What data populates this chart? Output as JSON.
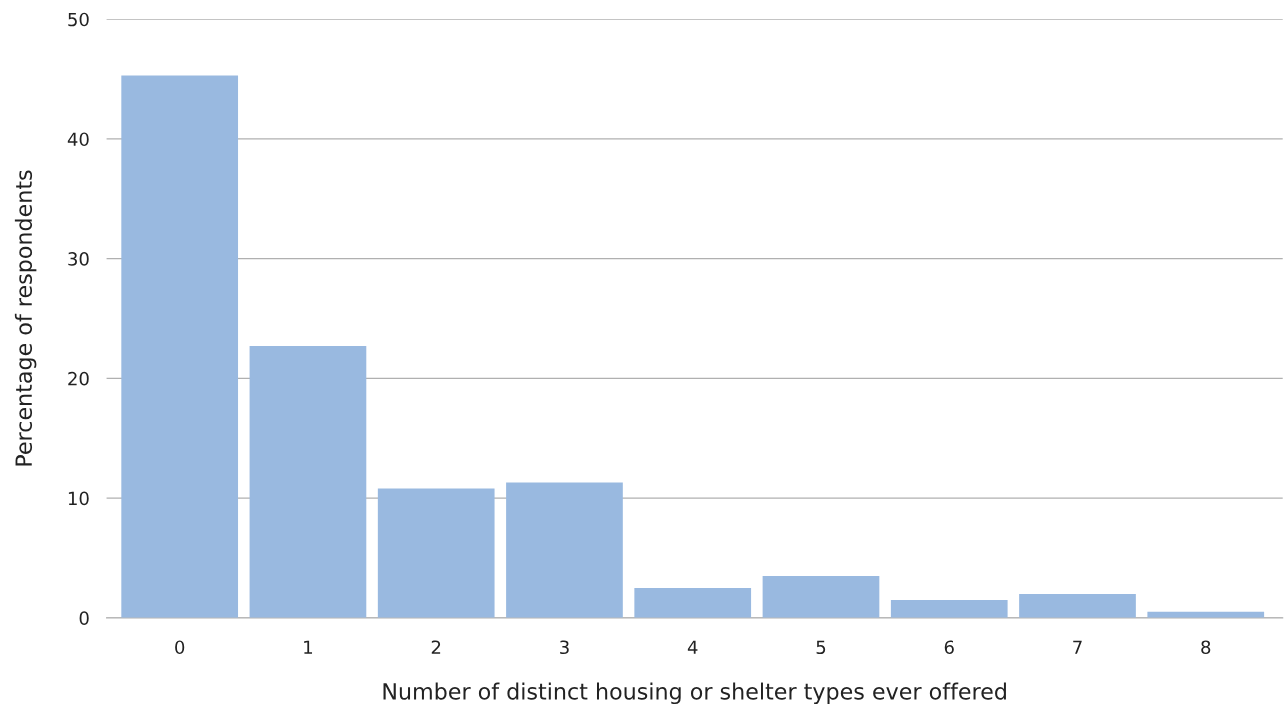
{
  "chart_data": {
    "type": "bar",
    "xlabel": "Number of distinct housing or shelter types ever offered",
    "ylabel": "Percentage of respondents",
    "categories": [
      "0",
      "1",
      "2",
      "3",
      "4",
      "5",
      "6",
      "7",
      "8"
    ],
    "values": [
      45.3,
      22.7,
      10.8,
      11.3,
      2.5,
      3.5,
      1.5,
      2.0,
      0.5
    ],
    "color": "#99b9e0",
    "ylim": [
      0,
      50
    ],
    "yticks": [
      0,
      10,
      20,
      30,
      40,
      50
    ],
    "grid": "y",
    "legend": false
  }
}
